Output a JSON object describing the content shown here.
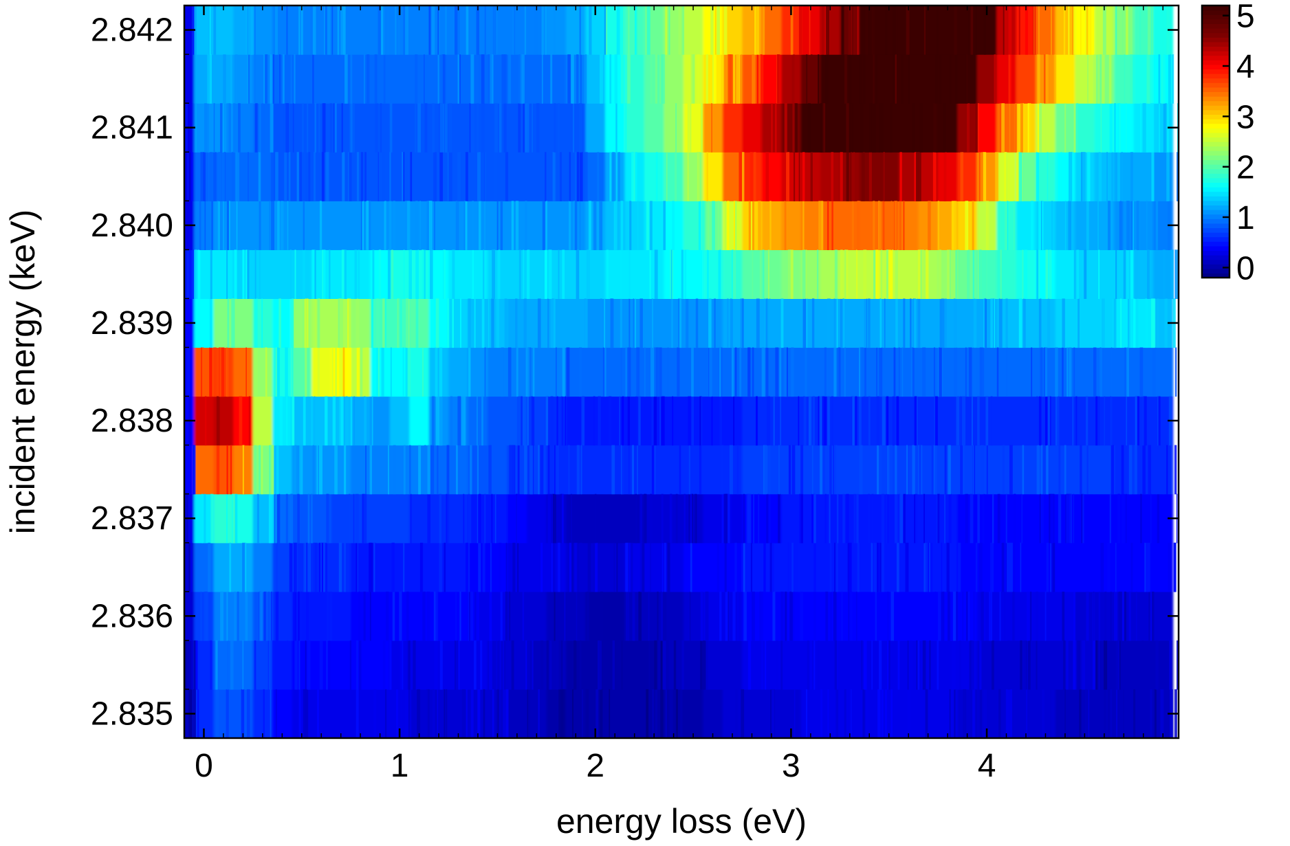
{
  "chart_data": {
    "type": "heatmap",
    "title": "",
    "xlabel": "energy loss (eV)",
    "ylabel": "incident energy (keV)",
    "xlim": [
      -0.1,
      4.98
    ],
    "ylim": [
      2.83475,
      2.84225
    ],
    "x_ticks": [
      {
        "value": 0,
        "label": "0"
      },
      {
        "value": 1,
        "label": "1"
      },
      {
        "value": 2,
        "label": "2"
      },
      {
        "value": 3,
        "label": "3"
      },
      {
        "value": 4,
        "label": "4"
      }
    ],
    "y_ticks": [
      {
        "value": 2.835,
        "label": "2.835"
      },
      {
        "value": 2.836,
        "label": "2.836"
      },
      {
        "value": 2.837,
        "label": "2.837"
      },
      {
        "value": 2.838,
        "label": "2.838"
      },
      {
        "value": 2.839,
        "label": "2.839"
      },
      {
        "value": 2.84,
        "label": "2.840"
      },
      {
        "value": 2.841,
        "label": "2.841"
      },
      {
        "value": 2.842,
        "label": "2.842"
      }
    ],
    "colorbar": {
      "range": [
        -0.2,
        5.2
      ],
      "ticks": [
        {
          "value": 0,
          "label": "0"
        },
        {
          "value": 1,
          "label": "1"
        },
        {
          "value": 2,
          "label": "2"
        },
        {
          "value": 3,
          "label": "3"
        },
        {
          "value": 4,
          "label": "4"
        },
        {
          "value": 5,
          "label": "5"
        }
      ],
      "colormap": "jet",
      "colors": [
        "#00007f",
        "#0000ff",
        "#007fff",
        "#00ffff",
        "#7fff7f",
        "#ffff00",
        "#ff7f00",
        "#ff0000",
        "#7f0000",
        "#3a0000"
      ]
    },
    "row_y_values": [
      2.835,
      2.8355,
      2.836,
      2.8365,
      2.837,
      2.8375,
      2.838,
      2.8385,
      2.839,
      2.8395,
      2.84,
      2.8405,
      2.841,
      2.8415,
      2.842
    ],
    "column_x_values": [
      -0.1,
      0.0,
      0.1,
      0.2,
      0.3,
      0.4,
      0.5,
      0.6,
      0.7,
      0.8,
      0.9,
      1.0,
      1.1,
      1.2,
      1.3,
      1.4,
      1.5,
      1.6,
      1.7,
      1.8,
      1.9,
      2.0,
      2.1,
      2.2,
      2.3,
      2.4,
      2.5,
      2.6,
      2.7,
      2.8,
      2.9,
      3.0,
      3.1,
      3.2,
      3.3,
      3.4,
      3.5,
      3.6,
      3.7,
      3.8,
      3.9,
      4.0,
      4.1,
      4.2,
      4.3,
      4.4,
      4.5,
      4.6,
      4.7,
      4.8,
      4.9
    ],
    "values": [
      [
        0.1,
        0.6,
        0.8,
        0.8,
        0.6,
        0.4,
        0.3,
        0.3,
        0.3,
        0.3,
        0.3,
        0.3,
        0.2,
        0.2,
        0.2,
        0.2,
        0.2,
        0.1,
        0.1,
        0.0,
        0.0,
        0.0,
        0.0,
        0.0,
        0.0,
        0.0,
        0.0,
        0.1,
        0.2,
        0.2,
        0.2,
        0.2,
        0.3,
        0.3,
        0.3,
        0.3,
        0.3,
        0.3,
        0.3,
        0.3,
        0.2,
        0.2,
        0.2,
        0.2,
        0.2,
        0.1,
        0.1,
        0.1,
        0.1,
        0.1,
        0.1
      ],
      [
        0.1,
        0.6,
        0.9,
        0.9,
        0.7,
        0.5,
        0.4,
        0.4,
        0.4,
        0.4,
        0.4,
        0.3,
        0.3,
        0.3,
        0.3,
        0.3,
        0.2,
        0.2,
        0.1,
        0.1,
        0.0,
        0.0,
        0.0,
        0.0,
        0.0,
        0.1,
        0.1,
        0.2,
        0.2,
        0.3,
        0.3,
        0.3,
        0.3,
        0.3,
        0.3,
        0.3,
        0.3,
        0.3,
        0.3,
        0.3,
        0.3,
        0.2,
        0.2,
        0.2,
        0.2,
        0.2,
        0.2,
        0.1,
        0.1,
        0.1,
        0.1
      ],
      [
        0.2,
        0.7,
        1.0,
        1.0,
        0.8,
        0.6,
        0.5,
        0.5,
        0.5,
        0.4,
        0.4,
        0.4,
        0.4,
        0.4,
        0.4,
        0.3,
        0.3,
        0.2,
        0.2,
        0.1,
        0.1,
        0.0,
        0.0,
        0.1,
        0.1,
        0.1,
        0.2,
        0.3,
        0.3,
        0.4,
        0.4,
        0.4,
        0.4,
        0.4,
        0.4,
        0.4,
        0.4,
        0.4,
        0.4,
        0.4,
        0.4,
        0.3,
        0.3,
        0.3,
        0.3,
        0.3,
        0.2,
        0.2,
        0.2,
        0.2,
        0.2
      ],
      [
        0.2,
        0.9,
        1.2,
        1.2,
        1.0,
        0.7,
        0.6,
        0.6,
        0.6,
        0.5,
        0.5,
        0.5,
        0.5,
        0.5,
        0.5,
        0.4,
        0.4,
        0.3,
        0.3,
        0.3,
        0.2,
        0.2,
        0.2,
        0.3,
        0.3,
        0.3,
        0.4,
        0.4,
        0.4,
        0.5,
        0.5,
        0.5,
        0.5,
        0.5,
        0.5,
        0.5,
        0.5,
        0.5,
        0.5,
        0.5,
        0.4,
        0.4,
        0.4,
        0.4,
        0.4,
        0.4,
        0.4,
        0.4,
        0.4,
        0.4,
        0.4
      ],
      [
        0.3,
        1.5,
        1.8,
        1.7,
        1.3,
        0.9,
        0.8,
        0.8,
        0.7,
        0.7,
        0.7,
        0.7,
        0.6,
        0.6,
        0.6,
        0.5,
        0.5,
        0.4,
        0.3,
        0.2,
        0.1,
        0.1,
        0.1,
        0.1,
        0.2,
        0.2,
        0.2,
        0.3,
        0.3,
        0.4,
        0.4,
        0.5,
        0.5,
        0.5,
        0.5,
        0.5,
        0.5,
        0.5,
        0.5,
        0.5,
        0.4,
        0.4,
        0.4,
        0.4,
        0.4,
        0.4,
        0.4,
        0.4,
        0.4,
        0.4,
        0.4
      ],
      [
        0.4,
        3.5,
        3.6,
        3.4,
        2.2,
        1.3,
        1.1,
        1.1,
        1.1,
        1.0,
        1.0,
        1.0,
        1.0,
        0.9,
        0.9,
        0.8,
        0.8,
        0.7,
        0.7,
        0.6,
        0.6,
        0.6,
        0.6,
        0.6,
        0.6,
        0.6,
        0.6,
        0.6,
        0.6,
        0.7,
        0.7,
        0.7,
        0.7,
        0.7,
        0.7,
        0.7,
        0.7,
        0.7,
        0.7,
        0.7,
        0.7,
        0.7,
        0.7,
        0.7,
        0.7,
        0.7,
        0.7,
        0.7,
        0.6,
        0.6,
        0.6
      ],
      [
        0.4,
        4.2,
        4.3,
        4.0,
        2.5,
        1.5,
        1.3,
        1.3,
        1.3,
        1.2,
        1.1,
        1.3,
        1.6,
        1.1,
        1.0,
        0.9,
        0.8,
        0.8,
        0.7,
        0.6,
        0.5,
        0.5,
        0.5,
        0.5,
        0.5,
        0.5,
        0.5,
        0.5,
        0.5,
        0.6,
        0.6,
        0.6,
        0.6,
        0.6,
        0.6,
        0.6,
        0.6,
        0.6,
        0.6,
        0.6,
        0.6,
        0.6,
        0.6,
        0.6,
        0.6,
        0.6,
        0.6,
        0.6,
        0.6,
        0.6,
        0.6
      ],
      [
        0.4,
        3.6,
        3.7,
        3.5,
        2.3,
        1.7,
        2.0,
        2.7,
        2.8,
        2.5,
        1.6,
        1.6,
        1.7,
        1.3,
        1.2,
        1.1,
        1.0,
        1.0,
        1.0,
        1.0,
        0.9,
        0.9,
        0.9,
        0.9,
        0.9,
        0.9,
        0.9,
        0.9,
        0.9,
        0.9,
        0.9,
        0.9,
        0.9,
        0.9,
        0.9,
        0.9,
        0.9,
        0.9,
        0.9,
        0.9,
        0.9,
        0.9,
        0.9,
        0.9,
        0.9,
        0.9,
        0.9,
        0.9,
        0.9,
        0.9,
        0.9
      ],
      [
        0.4,
        1.6,
        2.2,
        2.2,
        1.8,
        1.6,
        2.3,
        2.4,
        2.4,
        2.3,
        1.9,
        1.9,
        2.0,
        1.6,
        1.4,
        1.3,
        1.3,
        1.2,
        1.2,
        1.2,
        1.2,
        1.1,
        1.1,
        1.1,
        1.1,
        1.1,
        1.1,
        1.1,
        1.2,
        1.2,
        1.2,
        1.2,
        1.2,
        1.2,
        1.2,
        1.2,
        1.2,
        1.2,
        1.2,
        1.2,
        1.2,
        1.2,
        1.3,
        1.3,
        1.3,
        1.4,
        1.4,
        1.4,
        1.5,
        1.5,
        1.3
      ],
      [
        0.5,
        1.5,
        1.5,
        1.4,
        1.4,
        1.4,
        1.4,
        1.5,
        1.5,
        1.5,
        1.6,
        1.7,
        1.7,
        1.6,
        1.5,
        1.5,
        1.4,
        1.4,
        1.4,
        1.4,
        1.4,
        1.4,
        1.5,
        1.5,
        1.5,
        1.6,
        1.6,
        1.7,
        1.8,
        2.0,
        2.1,
        2.2,
        2.3,
        2.4,
        2.5,
        2.5,
        2.5,
        2.5,
        2.4,
        2.3,
        2.1,
        1.9,
        1.8,
        1.7,
        1.6,
        1.5,
        1.4,
        1.4,
        1.4,
        1.3,
        1.2
      ],
      [
        0.3,
        1.0,
        1.1,
        1.1,
        1.1,
        1.1,
        1.1,
        1.1,
        1.1,
        1.1,
        1.1,
        1.1,
        1.1,
        1.1,
        1.1,
        1.1,
        1.1,
        1.1,
        1.1,
        1.1,
        1.1,
        1.2,
        1.3,
        1.4,
        1.5,
        1.6,
        1.8,
        2.1,
        2.6,
        3.0,
        3.2,
        3.3,
        3.4,
        3.5,
        3.5,
        3.5,
        3.5,
        3.4,
        3.3,
        3.2,
        3.0,
        2.5,
        1.8,
        1.5,
        1.4,
        1.3,
        1.2,
        1.2,
        1.1,
        1.1,
        1.0
      ],
      [
        0.3,
        0.9,
        0.9,
        0.9,
        0.9,
        0.8,
        0.8,
        0.8,
        0.8,
        0.8,
        0.8,
        0.8,
        0.8,
        0.8,
        0.8,
        0.8,
        0.8,
        0.8,
        0.8,
        0.8,
        0.8,
        0.9,
        1.2,
        1.5,
        1.7,
        1.9,
        2.3,
        2.9,
        3.5,
        3.8,
        4.0,
        4.2,
        4.3,
        4.4,
        4.5,
        4.6,
        4.6,
        4.4,
        4.3,
        4.1,
        3.8,
        3.3,
        2.6,
        2.1,
        1.8,
        1.6,
        1.4,
        1.3,
        1.2,
        1.2,
        1.1
      ],
      [
        0.3,
        1.1,
        1.1,
        1.0,
        0.9,
        0.8,
        0.8,
        0.8,
        0.8,
        0.8,
        0.8,
        0.8,
        0.8,
        0.8,
        0.8,
        0.8,
        0.8,
        0.8,
        0.8,
        0.8,
        0.8,
        1.2,
        1.6,
        1.8,
        2.0,
        2.3,
        2.7,
        3.3,
        3.8,
        4.1,
        4.4,
        4.7,
        5.2,
        5.3,
        5.3,
        5.3,
        5.3,
        5.3,
        5.3,
        5.3,
        4.5,
        4.0,
        3.5,
        3.0,
        2.5,
        2.1,
        1.8,
        1.7,
        1.6,
        1.5,
        1.4
      ],
      [
        0.3,
        1.2,
        1.2,
        1.1,
        1.0,
        0.9,
        0.9,
        0.9,
        0.9,
        0.9,
        0.9,
        0.9,
        0.9,
        0.9,
        0.9,
        0.9,
        0.9,
        0.9,
        0.9,
        0.9,
        1.0,
        1.3,
        1.6,
        1.8,
        2.0,
        2.3,
        2.6,
        2.9,
        3.3,
        3.6,
        4.0,
        4.4,
        4.8,
        5.3,
        5.3,
        5.3,
        5.3,
        5.3,
        5.3,
        5.3,
        5.3,
        4.5,
        4.1,
        3.7,
        3.3,
        2.9,
        2.5,
        2.2,
        1.9,
        1.7,
        1.6
      ],
      [
        0.3,
        1.3,
        1.3,
        1.2,
        1.1,
        1.0,
        1.0,
        1.0,
        1.0,
        1.0,
        1.0,
        1.0,
        1.0,
        1.0,
        1.0,
        1.0,
        1.0,
        1.0,
        1.0,
        1.1,
        1.2,
        1.4,
        1.7,
        1.9,
        2.1,
        2.3,
        2.5,
        2.8,
        3.0,
        3.2,
        3.5,
        3.8,
        4.1,
        4.4,
        4.8,
        5.3,
        5.3,
        5.3,
        5.3,
        5.3,
        5.3,
        5.3,
        4.3,
        3.9,
        3.5,
        3.1,
        2.8,
        2.5,
        2.2,
        1.9,
        1.7
      ]
    ]
  }
}
